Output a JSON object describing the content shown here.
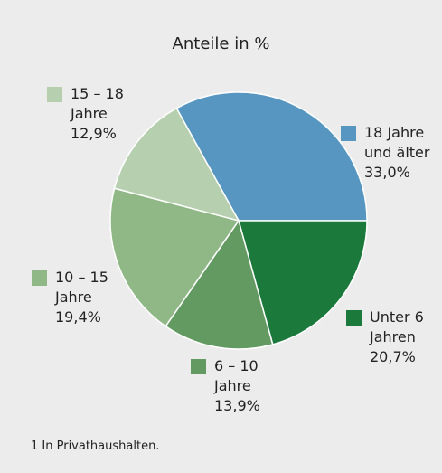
{
  "chart_data": {
    "type": "pie",
    "title": "Anteile in %",
    "categories": [
      "18 Jahre und älter",
      "Unter 6 Jahren",
      "6 – 10 Jahre",
      "10 – 15 Jahre",
      "15 – 18 Jahre"
    ],
    "values": [
      33.0,
      20.7,
      13.9,
      19.4,
      12.9
    ],
    "value_labels": [
      "33,0%",
      "20,7%",
      "13,9%",
      "19,4%",
      "12,9%"
    ],
    "colors": [
      "#5796c1",
      "#1b7a3b",
      "#629a62",
      "#8fb886",
      "#b6cfae"
    ],
    "footnote": "1 In Privathaushalten."
  }
}
